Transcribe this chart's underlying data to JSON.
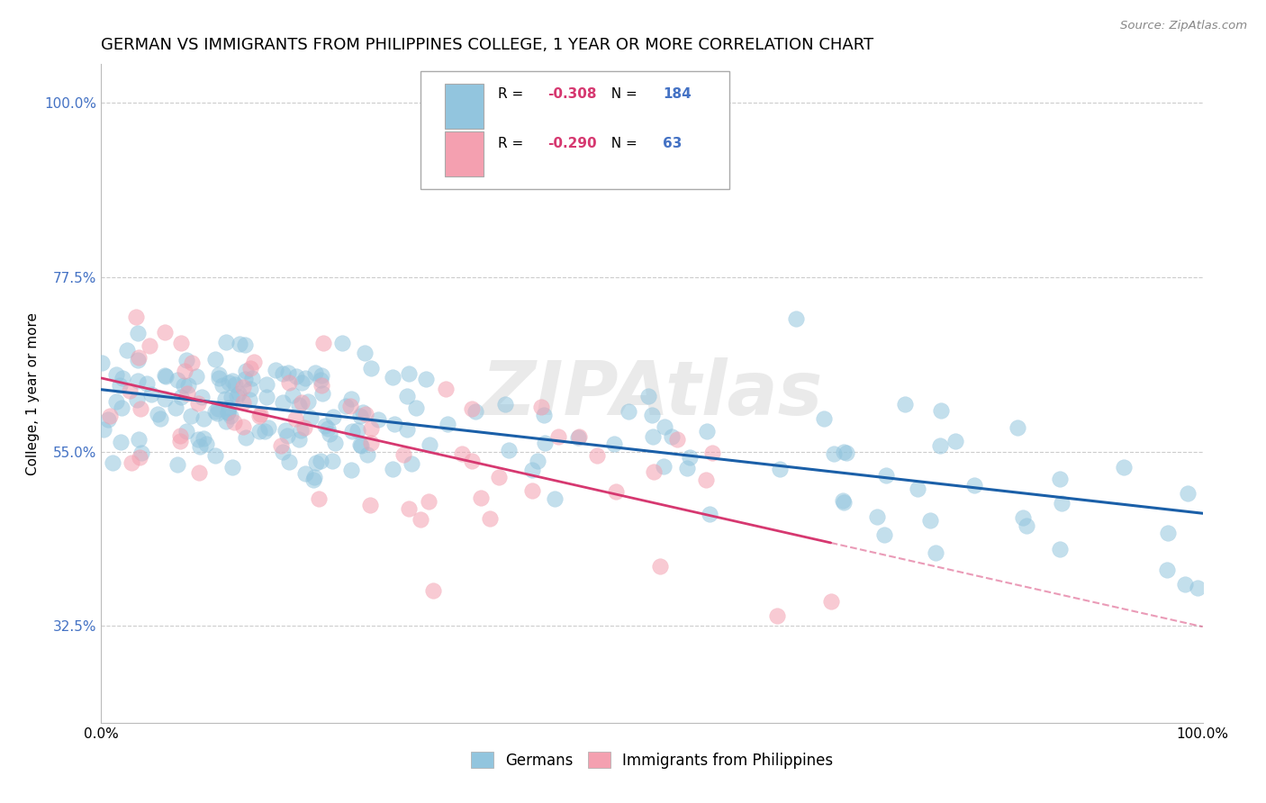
{
  "title": "GERMAN VS IMMIGRANTS FROM PHILIPPINES COLLEGE, 1 YEAR OR MORE CORRELATION CHART",
  "source": "Source: ZipAtlas.com",
  "ylabel": "College, 1 year or more",
  "xlim": [
    0.0,
    1.0
  ],
  "ylim": [
    0.2,
    1.05
  ],
  "yticks": [
    0.325,
    0.55,
    0.775,
    1.0
  ],
  "ytick_labels": [
    "32.5%",
    "55.0%",
    "77.5%",
    "100.0%"
  ],
  "xtick_labels": [
    "0.0%",
    "100.0%"
  ],
  "xticks": [
    0.0,
    1.0
  ],
  "r_german": -0.308,
  "n_german": 184,
  "r_philippines": -0.29,
  "n_philippines": 63,
  "blue_color": "#92c5de",
  "pink_color": "#f4a0b0",
  "blue_line_color": "#1a5fa8",
  "pink_line_color": "#d63870",
  "background_color": "#ffffff",
  "grid_color": "#cccccc",
  "tick_label_color": "#4472C4",
  "watermark_text": "ZIPAtlas",
  "title_fontsize": 13,
  "axis_label_fontsize": 11,
  "tick_fontsize": 11,
  "legend_r_color": "#d63870",
  "legend_n_color": "#4472C4"
}
